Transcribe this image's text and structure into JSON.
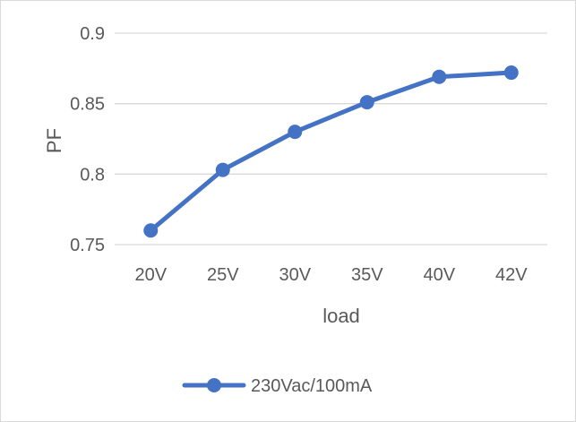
{
  "chart_data": {
    "type": "line",
    "title": "",
    "xlabel": "load",
    "ylabel": "PF",
    "categories": [
      "20V",
      "25V",
      "30V",
      "35V",
      "40V",
      "42V"
    ],
    "series": [
      {
        "name": "230Vac/100mA",
        "values": [
          0.76,
          0.803,
          0.83,
          0.851,
          0.869,
          0.872
        ],
        "color": "#4472c4"
      }
    ],
    "ylim": [
      0.75,
      0.9
    ],
    "yticks": [
      "0.75",
      "0.8",
      "0.85",
      "0.9"
    ],
    "ytick_values": [
      0.75,
      0.8,
      0.85,
      0.9
    ],
    "grid": true,
    "gridline_color": "#d9d9d9",
    "legend": "bottom",
    "markers": "circle"
  }
}
